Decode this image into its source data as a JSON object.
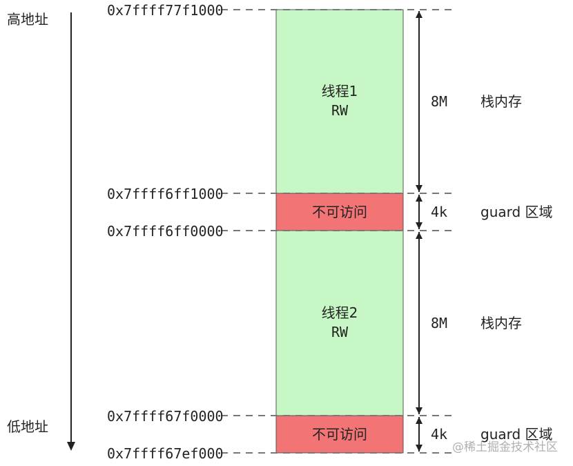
{
  "axis": {
    "high_label": "高地址",
    "low_label": "低地址"
  },
  "addresses": [
    "0x7ffff77f1000",
    "0x7ffff6ff1000",
    "0x7ffff6ff0000",
    "0x7ffff67f0000",
    "0x7ffff67ef000"
  ],
  "blocks": [
    {
      "line1": "线程1",
      "line2": "RW",
      "color": "#c6f7c5"
    },
    {
      "line1": "不可访问",
      "line2": "",
      "color": "#f27475"
    },
    {
      "line1": "线程2",
      "line2": "RW",
      "color": "#c6f7c5"
    },
    {
      "line1": "不可访问",
      "line2": "",
      "color": "#f27475"
    }
  ],
  "sizes": [
    {
      "size": "8M",
      "desc": "栈内存"
    },
    {
      "size": "4k",
      "desc": "guard 区域"
    },
    {
      "size": "8M",
      "desc": "栈内存"
    },
    {
      "size": "4k",
      "desc": "guard 区域"
    }
  ],
  "watermark": "@稀土掘金技术社区",
  "colors": {
    "line": "#333333",
    "dash": "#777777",
    "watermark": "#b0b0b0"
  }
}
